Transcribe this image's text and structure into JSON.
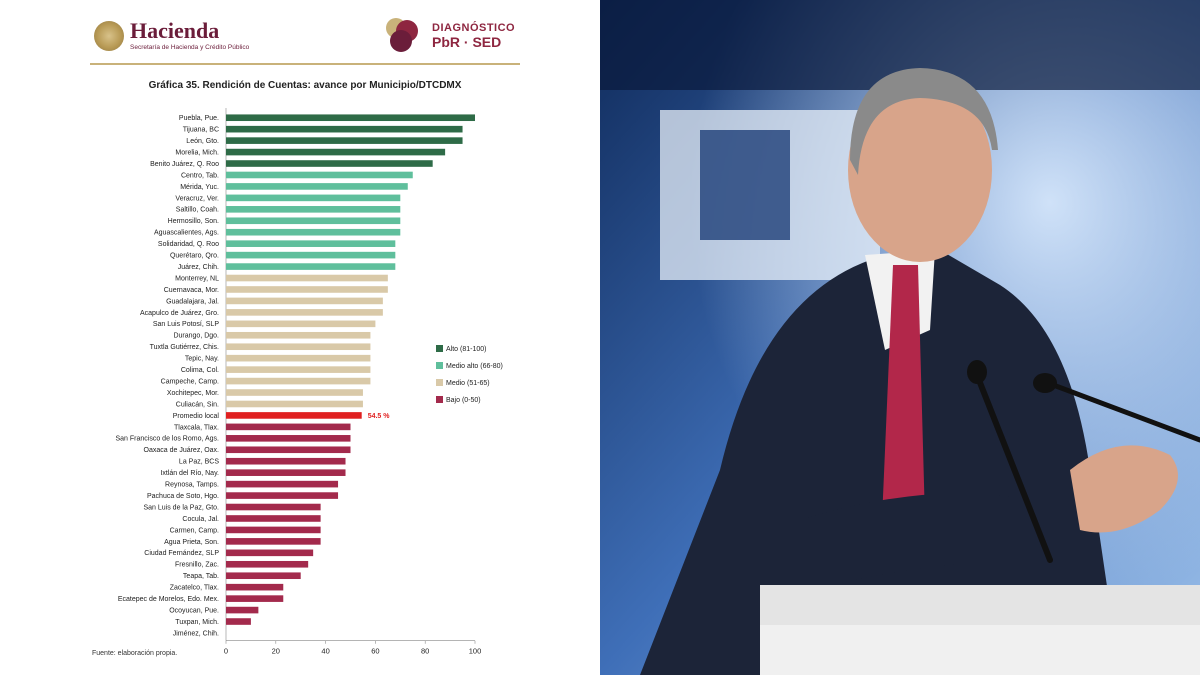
{
  "header": {
    "brand_name": "Hacienda",
    "brand_sub": "Secretaría de Hacienda y Crédito Público",
    "diag_line1": "DIAGNÓSTICO",
    "diag_line2": "PbR · SED"
  },
  "source_note": "Fuente: elaboración propia.",
  "chart_data": {
    "type": "bar",
    "orientation": "horizontal",
    "title": "Gráfica 35. Rendición de Cuentas: avance por Municipio/DTCDMX",
    "xlim": [
      0,
      100
    ],
    "xticks": [
      0,
      20,
      40,
      60,
      80,
      100
    ],
    "grid": false,
    "legend_position": "right",
    "colors": {
      "alto": "#2e6b47",
      "medio_alto": "#5fbf9c",
      "medio": "#d9c9a8",
      "bajo": "#a32a4c",
      "promedio": "#e02020"
    },
    "legend": [
      {
        "key": "alto",
        "label": "Alto (81-100)"
      },
      {
        "key": "medio_alto",
        "label": "Medio alto (66-80)"
      },
      {
        "key": "medio",
        "label": "Medio (51-65)"
      },
      {
        "key": "bajo",
        "label": "Bajo (0-50)"
      }
    ],
    "bars": [
      {
        "label": "Puebla, Pue.",
        "value": 100,
        "cat": "alto"
      },
      {
        "label": "Tijuana, BC",
        "value": 95,
        "cat": "alto"
      },
      {
        "label": "León, Gto.",
        "value": 95,
        "cat": "alto"
      },
      {
        "label": "Morelia, Mich.",
        "value": 88,
        "cat": "alto"
      },
      {
        "label": "Benito Juárez, Q. Roo",
        "value": 83,
        "cat": "alto"
      },
      {
        "label": "Centro, Tab.",
        "value": 75,
        "cat": "medio_alto"
      },
      {
        "label": "Mérida, Yuc.",
        "value": 73,
        "cat": "medio_alto"
      },
      {
        "label": "Veracruz, Ver.",
        "value": 70,
        "cat": "medio_alto"
      },
      {
        "label": "Saltillo, Coah.",
        "value": 70,
        "cat": "medio_alto"
      },
      {
        "label": "Hermosillo, Son.",
        "value": 70,
        "cat": "medio_alto"
      },
      {
        "label": "Aguascalientes, Ags.",
        "value": 70,
        "cat": "medio_alto"
      },
      {
        "label": "Solidaridad, Q. Roo",
        "value": 68,
        "cat": "medio_alto"
      },
      {
        "label": "Querétaro, Qro.",
        "value": 68,
        "cat": "medio_alto"
      },
      {
        "label": "Juárez, Chih.",
        "value": 68,
        "cat": "medio_alto"
      },
      {
        "label": "Monterrey, NL",
        "value": 65,
        "cat": "medio"
      },
      {
        "label": "Cuernavaca, Mor.",
        "value": 65,
        "cat": "medio"
      },
      {
        "label": "Guadalajara, Jal.",
        "value": 63,
        "cat": "medio"
      },
      {
        "label": "Acapulco de Juárez, Gro.",
        "value": 63,
        "cat": "medio"
      },
      {
        "label": "San Luis Potosí, SLP",
        "value": 60,
        "cat": "medio"
      },
      {
        "label": "Durango, Dgo.",
        "value": 58,
        "cat": "medio"
      },
      {
        "label": "Tuxtla Gutiérrez, Chis.",
        "value": 58,
        "cat": "medio"
      },
      {
        "label": "Tepic, Nay.",
        "value": 58,
        "cat": "medio"
      },
      {
        "label": "Colima, Col.",
        "value": 58,
        "cat": "medio"
      },
      {
        "label": "Campeche, Camp.",
        "value": 58,
        "cat": "medio"
      },
      {
        "label": "Xochitepec, Mor.",
        "value": 55,
        "cat": "medio"
      },
      {
        "label": "Culiacán, Sin.",
        "value": 55,
        "cat": "medio"
      },
      {
        "label": "Promedio local",
        "value": 54.5,
        "cat": "promedio",
        "value_label": "54.5 %"
      },
      {
        "label": "Tlaxcala, Tlax.",
        "value": 50,
        "cat": "bajo"
      },
      {
        "label": "San Francisco de los Romo, Ags.",
        "value": 50,
        "cat": "bajo"
      },
      {
        "label": "Oaxaca de Juárez, Oax.",
        "value": 50,
        "cat": "bajo"
      },
      {
        "label": "La Paz, BCS",
        "value": 48,
        "cat": "bajo"
      },
      {
        "label": "Ixtlán del Río, Nay.",
        "value": 48,
        "cat": "bajo"
      },
      {
        "label": "Reynosa, Tamps.",
        "value": 45,
        "cat": "bajo"
      },
      {
        "label": "Pachuca de Soto, Hgo.",
        "value": 45,
        "cat": "bajo"
      },
      {
        "label": "San Luis de la Paz, Gto.",
        "value": 38,
        "cat": "bajo"
      },
      {
        "label": "Cocula, Jal.",
        "value": 38,
        "cat": "bajo"
      },
      {
        "label": "Carmen, Camp.",
        "value": 38,
        "cat": "bajo"
      },
      {
        "label": "Agua Prieta, Son.",
        "value": 38,
        "cat": "bajo"
      },
      {
        "label": "Ciudad Fernández, SLP",
        "value": 35,
        "cat": "bajo"
      },
      {
        "label": "Fresnillo, Zac.",
        "value": 33,
        "cat": "bajo"
      },
      {
        "label": "Teapa, Tab.",
        "value": 30,
        "cat": "bajo"
      },
      {
        "label": "Zacatelco, Tlax.",
        "value": 23,
        "cat": "bajo"
      },
      {
        "label": "Ecatepec de Morelos, Edo. Mex.",
        "value": 23,
        "cat": "bajo"
      },
      {
        "label": "Ocoyucan, Pue.",
        "value": 13,
        "cat": "bajo"
      },
      {
        "label": "Tuxpan, Mich.",
        "value": 10,
        "cat": "bajo"
      },
      {
        "label": "Jiménez, Chih.",
        "value": 0,
        "cat": "bajo"
      }
    ]
  }
}
